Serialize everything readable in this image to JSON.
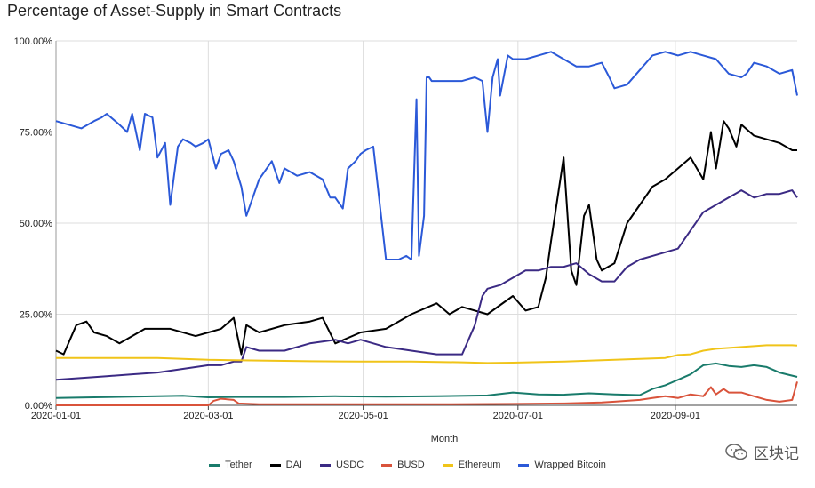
{
  "chart_data": {
    "type": "line",
    "title": "Percentage of Asset-Supply in Smart Contracts",
    "xlabel": "Month",
    "ylabel": "",
    "ylim": [
      0,
      100
    ],
    "x_range": [
      "2020-01-01",
      "2020-10-19"
    ],
    "x_tick_labels": [
      "2020-01-01",
      "2020-03-01",
      "2020-05-01",
      "2020-07-01",
      "2020-09-01"
    ],
    "x_tick_days": [
      0,
      60,
      121,
      182,
      244
    ],
    "y_ticks": [
      0,
      25,
      50,
      75,
      100
    ],
    "y_tick_labels": [
      "0.00%",
      "25.00%",
      "50.00%",
      "75.00%",
      "100.00%"
    ],
    "grid": true,
    "legend_position": "bottom",
    "series": [
      {
        "name": "Tether",
        "color": "#197b6b",
        "x": [
          0,
          15,
          30,
          50,
          60,
          70,
          90,
          110,
          130,
          150,
          170,
          180,
          190,
          200,
          210,
          220,
          230,
          235,
          240,
          245,
          250,
          255,
          260,
          265,
          270,
          275,
          280,
          285,
          292
        ],
        "y": [
          2,
          2.2,
          2.4,
          2.6,
          2.2,
          2.3,
          2.3,
          2.5,
          2.4,
          2.5,
          2.7,
          3.5,
          3.0,
          2.9,
          3.3,
          3.0,
          2.8,
          4.5,
          5.5,
          7,
          8.5,
          11,
          11.5,
          10.8,
          10.5,
          11,
          10.5,
          9.0,
          7.8
        ]
      },
      {
        "name": "DAI",
        "color": "#000000",
        "x": [
          0,
          3,
          8,
          12,
          15,
          20,
          25,
          35,
          45,
          55,
          60,
          65,
          70,
          73,
          75,
          80,
          90,
          100,
          105,
          110,
          120,
          130,
          140,
          150,
          155,
          160,
          170,
          180,
          185,
          190,
          193,
          195,
          200,
          203,
          205,
          208,
          210,
          213,
          215,
          220,
          225,
          230,
          235,
          240,
          245,
          250,
          255,
          258,
          260,
          263,
          265,
          268,
          270,
          275,
          280,
          285,
          290,
          292
        ],
        "y": [
          15,
          14,
          22,
          23,
          20,
          19,
          17,
          21,
          21,
          19,
          20,
          21,
          24,
          14,
          22,
          20,
          22,
          23,
          24,
          17,
          20,
          21,
          25,
          28,
          25,
          27,
          25,
          30,
          26,
          27,
          35,
          45,
          68,
          37,
          33,
          52,
          55,
          40,
          37,
          39,
          50,
          55,
          60,
          62,
          65,
          68,
          62,
          75,
          65,
          78,
          76,
          71,
          77,
          74,
          73,
          72,
          70,
          70
        ]
      },
      {
        "name": "USDC",
        "color": "#3b2a84",
        "x": [
          0,
          10,
          20,
          30,
          40,
          50,
          60,
          65,
          70,
          73,
          75,
          80,
          90,
          100,
          110,
          115,
          120,
          130,
          140,
          150,
          160,
          165,
          168,
          170,
          175,
          180,
          185,
          190,
          195,
          200,
          205,
          210,
          215,
          220,
          225,
          230,
          235,
          240,
          245,
          250,
          255,
          260,
          265,
          270,
          275,
          280,
          285,
          290,
          292
        ],
        "y": [
          7,
          7.5,
          8,
          8.5,
          9,
          10,
          11,
          11,
          12,
          12,
          16,
          15,
          15,
          17,
          18,
          17,
          18,
          16,
          15,
          14,
          14,
          22,
          30,
          32,
          33,
          35,
          37,
          37,
          38,
          38,
          39,
          36,
          34,
          34,
          38,
          40,
          41,
          42,
          43,
          48,
          53,
          55,
          57,
          59,
          57,
          58,
          58,
          59,
          57
        ]
      },
      {
        "name": "BUSD",
        "color": "#d9533b",
        "x": [
          0,
          60,
          62,
          65,
          70,
          72,
          80,
          100,
          120,
          150,
          180,
          200,
          215,
          220,
          230,
          235,
          240,
          245,
          250,
          255,
          258,
          260,
          263,
          265,
          270,
          275,
          280,
          285,
          290,
          292
        ],
        "y": [
          0,
          0,
          1.2,
          1.8,
          1.5,
          0.5,
          0.3,
          0.3,
          0.3,
          0.3,
          0.4,
          0.5,
          0.8,
          1.0,
          1.5,
          2.0,
          2.5,
          2.0,
          3.0,
          2.5,
          5.0,
          3.0,
          4.5,
          3.5,
          3.5,
          2.5,
          1.5,
          1.0,
          1.5,
          6.5
        ]
      },
      {
        "name": "Ethereum",
        "color": "#f0c419",
        "x": [
          0,
          20,
          40,
          60,
          80,
          100,
          120,
          140,
          160,
          170,
          180,
          200,
          220,
          240,
          245,
          250,
          255,
          260,
          270,
          280,
          290,
          292
        ],
        "y": [
          13,
          13,
          13,
          12.5,
          12.3,
          12.1,
          12,
          12,
          11.8,
          11.6,
          11.7,
          12,
          12.5,
          13,
          13.8,
          14,
          15,
          15.5,
          16,
          16.5,
          16.5,
          16.4
        ]
      },
      {
        "name": "Wrapped Bitcoin",
        "color": "#2b59d8",
        "x": [
          0,
          5,
          10,
          15,
          18,
          20,
          25,
          28,
          30,
          33,
          35,
          38,
          40,
          43,
          45,
          48,
          50,
          53,
          55,
          58,
          60,
          63,
          65,
          68,
          70,
          73,
          75,
          78,
          80,
          85,
          88,
          90,
          95,
          100,
          105,
          108,
          110,
          113,
          115,
          118,
          120,
          122,
          125,
          130,
          133,
          135,
          138,
          140,
          142,
          143,
          145,
          146,
          147,
          148,
          150,
          155,
          160,
          165,
          168,
          170,
          172,
          174,
          175,
          178,
          180,
          185,
          190,
          195,
          200,
          205,
          210,
          215,
          218,
          220,
          225,
          230,
          235,
          240,
          245,
          250,
          255,
          260,
          265,
          270,
          272,
          275,
          280,
          285,
          290,
          292
        ],
        "y": [
          78,
          77,
          76,
          78,
          79,
          80,
          77,
          75,
          80,
          70,
          80,
          79,
          68,
          72,
          55,
          71,
          73,
          72,
          71,
          72,
          73,
          65,
          69,
          70,
          67,
          60,
          52,
          58,
          62,
          67,
          61,
          65,
          63,
          64,
          62,
          57,
          57,
          54,
          65,
          67,
          69,
          70,
          71,
          40,
          40,
          40,
          41,
          40,
          84,
          41,
          52,
          90,
          90,
          89,
          89,
          89,
          89,
          90,
          89,
          75,
          90,
          95,
          85,
          96,
          95,
          95,
          96,
          97,
          95,
          93,
          93,
          94,
          90,
          87,
          88,
          92,
          96,
          97,
          96,
          97,
          96,
          95,
          91,
          90,
          91,
          94,
          93,
          91,
          92,
          85
        ]
      }
    ]
  },
  "watermark": {
    "text": "区块记",
    "icon": "wechat-icon"
  }
}
